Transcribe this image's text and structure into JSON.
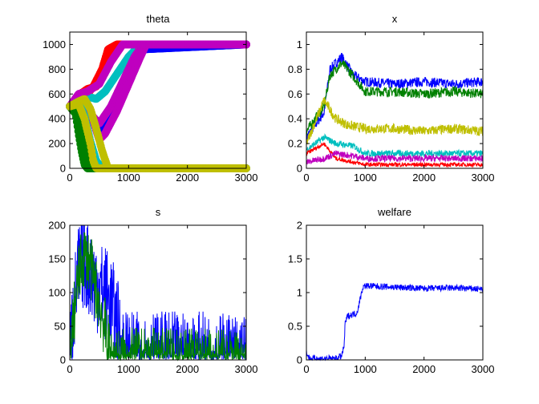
{
  "chart_data": [
    {
      "type": "scatter",
      "title": "theta",
      "xlim": [
        0,
        3000
      ],
      "ylim": [
        0,
        1100
      ],
      "xticks": [
        0,
        1000,
        2000,
        3000
      ],
      "yticks": [
        0,
        200,
        400,
        600,
        800,
        1000
      ],
      "xtick_labels": [
        "0",
        "1000",
        "2000",
        "3000"
      ],
      "ytick_labels": [
        "0",
        "200",
        "400",
        "600",
        "800",
        "1000"
      ],
      "grid": false,
      "series": [
        {
          "color": "#ff0000",
          "x": [
            0,
            100,
            200,
            300,
            400,
            550,
            650,
            800,
            1000,
            3000
          ],
          "y": [
            500,
            560,
            610,
            600,
            660,
            800,
            960,
            1000,
            1000,
            1000
          ]
        },
        {
          "color": "#ff0000",
          "x": [
            0,
            150,
            300,
            450,
            550,
            700,
            850,
            3000
          ],
          "y": [
            500,
            590,
            640,
            660,
            750,
            900,
            1000,
            1000
          ]
        },
        {
          "color": "#00bfbf",
          "x": [
            0,
            150,
            300,
            450,
            600,
            800,
            1000,
            1200,
            3000
          ],
          "y": [
            500,
            560,
            580,
            560,
            620,
            760,
            900,
            1000,
            1000
          ]
        },
        {
          "color": "#0000ff",
          "x": [
            0,
            200,
            400,
            500,
            600,
            800,
            1000,
            1200,
            3000
          ],
          "y": [
            500,
            500,
            400,
            310,
            380,
            580,
            760,
            960,
            1000
          ]
        },
        {
          "color": "#bf00bf",
          "x": [
            0,
            200,
            350,
            500,
            700,
            900,
            1100,
            1250,
            3000
          ],
          "y": [
            500,
            520,
            440,
            360,
            500,
            700,
            900,
            1000,
            1000
          ]
        },
        {
          "color": "#bf00bf",
          "x": [
            0,
            200,
            400,
            500,
            600,
            800,
            1000,
            1200,
            1300,
            3000
          ],
          "y": [
            500,
            480,
            380,
            230,
            280,
            460,
            680,
            900,
            1000,
            1000
          ]
        },
        {
          "color": "#bf00bf",
          "x": [
            0,
            150,
            300,
            500,
            700,
            900,
            1000,
            3000
          ],
          "y": [
            500,
            600,
            620,
            680,
            860,
            1000,
            1000,
            1000
          ]
        },
        {
          "color": "#008000",
          "x": [
            0,
            100,
            150,
            200,
            250,
            300,
            3000
          ],
          "y": [
            500,
            440,
            280,
            140,
            30,
            0,
            0
          ]
        },
        {
          "color": "#008000",
          "x": [
            0,
            150,
            200,
            300,
            350,
            400,
            3000
          ],
          "y": [
            500,
            460,
            300,
            150,
            30,
            0,
            0
          ]
        },
        {
          "color": "#00bfbf",
          "x": [
            0,
            150,
            250,
            350,
            450,
            550,
            3000
          ],
          "y": [
            500,
            540,
            420,
            220,
            60,
            0,
            0
          ]
        },
        {
          "color": "#bfbf00",
          "x": [
            0,
            150,
            250,
            350,
            400,
            450,
            3000
          ],
          "y": [
            500,
            520,
            400,
            200,
            60,
            0,
            0
          ]
        },
        {
          "color": "#bfbf00",
          "x": [
            0,
            150,
            250,
            350,
            450,
            550,
            650,
            3000
          ],
          "y": [
            500,
            540,
            560,
            480,
            320,
            140,
            0,
            0
          ]
        }
      ]
    },
    {
      "type": "line",
      "title": "x",
      "xlim": [
        0,
        3000
      ],
      "ylim": [
        0,
        1.1
      ],
      "xticks": [
        0,
        1000,
        2000,
        3000
      ],
      "yticks": [
        0,
        0.2,
        0.4,
        0.6,
        0.8,
        1
      ],
      "xtick_labels": [
        "0",
        "1000",
        "2000",
        "3000"
      ],
      "ytick_labels": [
        "0",
        "0.2",
        "0.4",
        "0.6",
        "0.8",
        "1"
      ],
      "grid": false,
      "series": [
        {
          "color": "#0000ff",
          "x": [
            0,
            300,
            400,
            600,
            800,
            1000,
            1500,
            2000,
            2500,
            3000
          ],
          "y": [
            0.25,
            0.45,
            0.8,
            0.9,
            0.75,
            0.7,
            0.68,
            0.7,
            0.68,
            0.7
          ],
          "noise": 0.12
        },
        {
          "color": "#008000",
          "x": [
            0,
            300,
            400,
            600,
            700,
            1000,
            1500,
            2000,
            2500,
            3000
          ],
          "y": [
            0.3,
            0.5,
            0.75,
            0.85,
            0.8,
            0.62,
            0.62,
            0.6,
            0.62,
            0.6
          ],
          "noise": 0.12
        },
        {
          "color": "#bfbf00",
          "x": [
            0,
            300,
            500,
            700,
            1000,
            1500,
            2000,
            2500,
            3000
          ],
          "y": [
            0.2,
            0.55,
            0.4,
            0.35,
            0.32,
            0.32,
            0.3,
            0.32,
            0.3
          ],
          "noise": 0.12
        },
        {
          "color": "#00bfbf",
          "x": [
            0,
            300,
            500,
            800,
            1000,
            1500,
            2000,
            2500,
            3000
          ],
          "y": [
            0.15,
            0.25,
            0.2,
            0.18,
            0.12,
            0.12,
            0.12,
            0.12,
            0.12
          ],
          "noise": 0.08
        },
        {
          "color": "#ff0000",
          "x": [
            0,
            300,
            500,
            800,
            1000,
            3000
          ],
          "y": [
            0.12,
            0.2,
            0.08,
            0.05,
            0.03,
            0.03
          ],
          "noise": 0.05
        },
        {
          "color": "#bf00bf",
          "x": [
            0,
            300,
            500,
            800,
            1000,
            1500,
            2000,
            2500,
            3000
          ],
          "y": [
            0.05,
            0.08,
            0.12,
            0.1,
            0.08,
            0.08,
            0.08,
            0.08,
            0.08
          ],
          "noise": 0.08
        }
      ]
    },
    {
      "type": "line",
      "title": "s",
      "xlim": [
        0,
        3000
      ],
      "ylim": [
        0,
        200
      ],
      "xticks": [
        0,
        1000,
        2000,
        3000
      ],
      "yticks": [
        0,
        50,
        100,
        150,
        200
      ],
      "xtick_labels": [
        "0",
        "1000",
        "2000",
        "3000"
      ],
      "ytick_labels": [
        "0",
        "50",
        "100",
        "150",
        "200"
      ],
      "grid": false,
      "series": [
        {
          "color": "#0000ff",
          "x": [
            0,
            50,
            100,
            150,
            200,
            250,
            300,
            400,
            500,
            600,
            700,
            800,
            900,
            1000,
            3000
          ],
          "y": [
            0,
            60,
            100,
            130,
            143,
            148,
            140,
            120,
            108,
            100,
            85,
            55,
            15,
            0,
            0
          ],
          "noise": 1.2
        },
        {
          "color": "#008000",
          "x": [
            0,
            50,
            100,
            150,
            200,
            250,
            300,
            350,
            400,
            500,
            600,
            700,
            3000
          ],
          "y": [
            0,
            50,
            90,
            125,
            145,
            155,
            150,
            140,
            120,
            85,
            45,
            0,
            0
          ],
          "noise": 0.8
        }
      ]
    },
    {
      "type": "line",
      "title": "welfare",
      "xlim": [
        0,
        3000
      ],
      "ylim": [
        0,
        2
      ],
      "xticks": [
        0,
        1000,
        2000,
        3000
      ],
      "yticks": [
        0,
        0.5,
        1,
        1.5,
        2
      ],
      "xtick_labels": [
        "0",
        "1000",
        "2000",
        "3000"
      ],
      "ytick_labels": [
        "0",
        "0.5",
        "1",
        "1.5",
        "2"
      ],
      "grid": false,
      "series": [
        {
          "color": "#0000ff",
          "x": [
            0,
            10,
            30,
            60,
            200,
            500,
            600,
            640,
            660,
            700,
            800,
            860,
            900,
            940,
            960,
            1000,
            1500,
            2000,
            2500,
            3000
          ],
          "y": [
            0.15,
            0.1,
            0.05,
            0.02,
            0.02,
            0.02,
            0.06,
            0.2,
            0.55,
            0.65,
            0.68,
            0.7,
            0.85,
            1.0,
            1.08,
            1.1,
            1.08,
            1.06,
            1.07,
            1.05
          ],
          "noise": 0.08
        }
      ]
    }
  ]
}
